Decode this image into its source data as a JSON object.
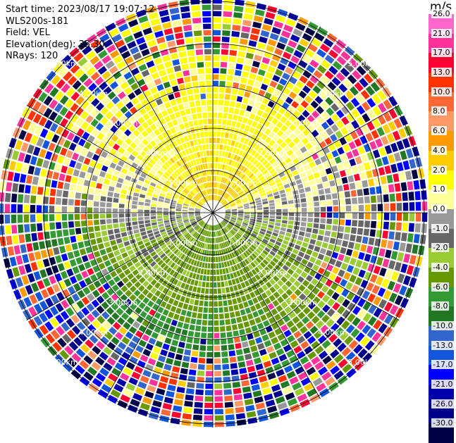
{
  "header": {
    "start_time": "Start time: 2023/08/17 19:07:12",
    "instrument": "WLS200s-181",
    "field": "Field: VEL",
    "elevation": "Elevation(deg): 35.30",
    "nrays": "NRays: 120"
  },
  "colorbar": {
    "unit": "m/s",
    "ticks": [
      "26.0",
      "21.0",
      "17.0",
      "13.0",
      "10.0",
      "8.0",
      "6.0",
      "4.0",
      "2.0",
      "1.0",
      "0.0",
      "-1.0",
      "-2.0",
      "-4.0",
      "-6.0",
      "-8.0",
      "-10.0",
      "-13.0",
      "-17.0",
      "-21.0",
      "-26.0",
      "-30.0"
    ],
    "colors": [
      "#ff66cc",
      "#ff3399",
      "#ff0033",
      "#ff3300",
      "#ff6633",
      "#ff9966",
      "#ff9900",
      "#ffcc00",
      "#ffff00",
      "#ffff99",
      "#999999",
      "#666666",
      "#99cc33",
      "#669900",
      "#339933",
      "#227722",
      "#3366cc",
      "#1155dd",
      "#0000ff",
      "#0000aa",
      "#000088",
      "#000044"
    ]
  },
  "chart_data": {
    "type": "heatmap",
    "subtype": "radar-ppi",
    "field": "VEL",
    "nrays": 120,
    "range_rings_km": [
      1,
      2,
      3,
      4,
      5
    ],
    "ring_labels": [
      "1.00km",
      "2.00km",
      "3.00km",
      "4.00km",
      "5.00km"
    ],
    "spokes_deg": [
      0,
      30,
      60,
      90,
      120,
      150,
      180,
      210,
      240,
      270,
      300,
      330
    ],
    "vmin": -30,
    "vmax": 30,
    "description_values": {
      "north_inner_mean_ms": 2.5,
      "south_inner_mean_ms": -3.0,
      "southwest_outer_mean_ms": -10.0,
      "outer_noise": true
    }
  }
}
